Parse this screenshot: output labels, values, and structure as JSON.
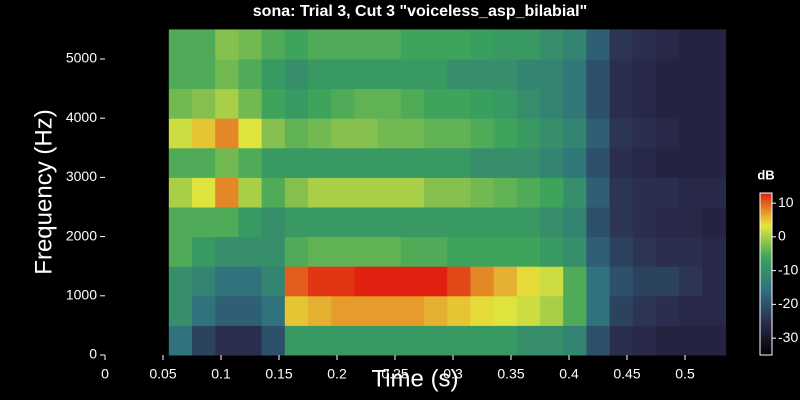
{
  "chart_data": {
    "type": "heatmap",
    "title": "sona: Trial 3, Cut 3 \"voiceless_asp_bilabial\"",
    "x_label": "Time (s)",
    "y_label": "Frequency (Hz)",
    "colorbar_label": "dB",
    "x": [
      0.065,
      0.085,
      0.105,
      0.125,
      0.145,
      0.165,
      0.185,
      0.205,
      0.225,
      0.245,
      0.265,
      0.285,
      0.305,
      0.325,
      0.345,
      0.365,
      0.385,
      0.405,
      0.425,
      0.445,
      0.465,
      0.485,
      0.505,
      0.525
    ],
    "y": [
      250,
      750,
      1250,
      1750,
      2250,
      2750,
      3250,
      3750,
      4250,
      4750,
      5250
    ],
    "values": [
      [
        -15,
        -22,
        -25,
        -25,
        -20,
        -8,
        -8,
        -8,
        -8,
        -8,
        -8,
        -8,
        -8,
        -8,
        -8,
        -10,
        -10,
        -12,
        -20,
        -25,
        -26,
        -27,
        -27,
        -27
      ],
      [
        -10,
        -15,
        -18,
        -18,
        -15,
        5,
        6,
        7,
        7,
        7,
        7,
        6,
        5,
        4,
        3,
        2,
        0,
        -5,
        -15,
        -22,
        -24,
        -25,
        -26,
        -26
      ],
      [
        -10,
        -12,
        -15,
        -15,
        -12,
        10,
        12,
        12,
        13,
        13,
        13,
        13,
        11,
        8,
        6,
        4,
        2,
        -5,
        -15,
        -20,
        -22,
        -22,
        -24,
        -26
      ],
      [
        -5,
        -8,
        -10,
        -10,
        -10,
        -5,
        -4,
        -4,
        -4,
        -4,
        -5,
        -5,
        -6,
        -6,
        -6,
        -6,
        -8,
        -10,
        -18,
        -22,
        -24,
        -25,
        -25,
        -26
      ],
      [
        -5,
        -5,
        -5,
        -8,
        -10,
        -8,
        -8,
        -8,
        -8,
        -8,
        -8,
        -8,
        -8,
        -8,
        -8,
        -8,
        -10,
        -12,
        -20,
        -24,
        -25,
        -26,
        -26,
        -27
      ],
      [
        0,
        3,
        8,
        0,
        -5,
        -2,
        0,
        0,
        0,
        0,
        0,
        -2,
        -2,
        -3,
        -4,
        -5,
        -6,
        -10,
        -18,
        -24,
        -25,
        -25,
        -26,
        -26
      ],
      [
        -5,
        -5,
        -3,
        -5,
        -8,
        -8,
        -8,
        -8,
        -8,
        -8,
        -8,
        -8,
        -8,
        -10,
        -10,
        -10,
        -12,
        -14,
        -20,
        -25,
        -26,
        -27,
        -27,
        -27
      ],
      [
        2,
        5,
        8,
        3,
        -2,
        -4,
        -3,
        -2,
        -2,
        -3,
        -3,
        -4,
        -4,
        -5,
        -6,
        -8,
        -10,
        -12,
        -18,
        -24,
        -25,
        -26,
        -27,
        -27
      ],
      [
        -3,
        -2,
        0,
        -3,
        -6,
        -8,
        -6,
        -5,
        -4,
        -4,
        -5,
        -6,
        -6,
        -7,
        -8,
        -10,
        -12,
        -14,
        -20,
        -25,
        -26,
        -27,
        -27,
        -27
      ],
      [
        -5,
        -5,
        -3,
        -5,
        -8,
        -10,
        -8,
        -8,
        -8,
        -8,
        -8,
        -8,
        -10,
        -10,
        -10,
        -12,
        -12,
        -14,
        -20,
        -25,
        -26,
        -27,
        -27,
        -27
      ],
      [
        -5,
        -5,
        -2,
        -3,
        -5,
        -6,
        -5,
        -5,
        -5,
        -5,
        -6,
        -6,
        -6,
        -7,
        -8,
        -8,
        -10,
        -12,
        -18,
        -24,
        -25,
        -26,
        -27,
        -27
      ]
    ],
    "xlim": [
      0,
      0.535
    ],
    "xticks": [
      0,
      0.05,
      0.1,
      0.15,
      0.2,
      0.25,
      0.3,
      0.35,
      0.4,
      0.45,
      0.5
    ],
    "ylim": [
      0,
      5500
    ],
    "yticks": [
      0,
      1000,
      2000,
      3000,
      4000,
      5000
    ],
    "zlim": [
      -35,
      13
    ],
    "zticks": [
      -30,
      -20,
      -10,
      0,
      10
    ],
    "colormap": [
      "#000000",
      "#2b2b4d",
      "#2f6f80",
      "#3aa35c",
      "#e6e63c",
      "#e2200f"
    ]
  }
}
